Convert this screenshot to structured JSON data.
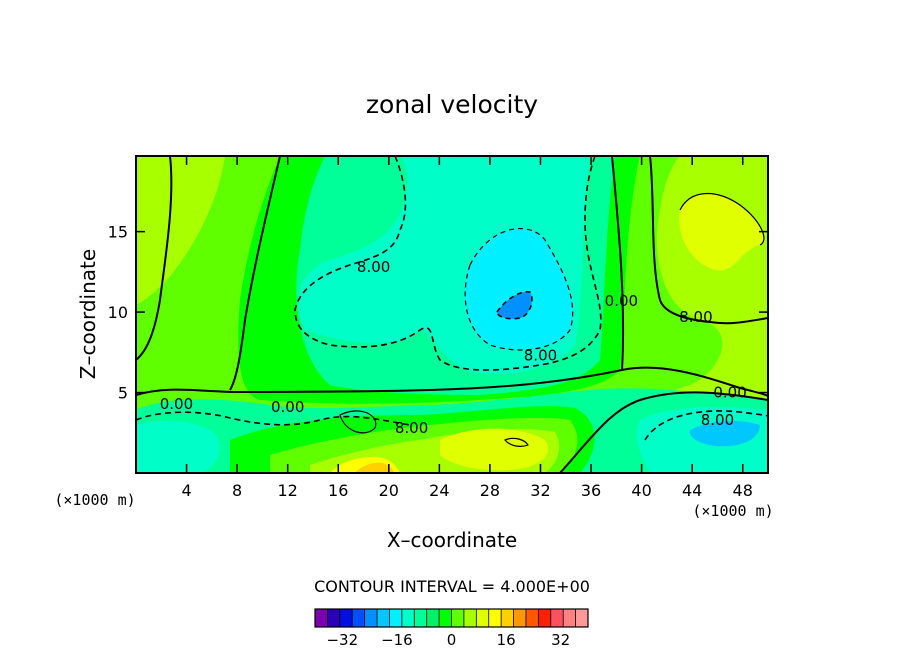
{
  "chart_data": {
    "type": "heatmap",
    "title": "zonal velocity",
    "xlabel": "X–coordinate",
    "ylabel": "Z–coordinate",
    "x_unit_left": "(×1000 m)",
    "x_unit_right": "(×1000 m)",
    "xlim": [
      0,
      50
    ],
    "ylim": [
      0,
      19.7
    ],
    "x_ticks": [
      4,
      8,
      12,
      16,
      20,
      24,
      28,
      32,
      36,
      40,
      44,
      48
    ],
    "y_ticks": [
      5,
      10,
      15
    ],
    "contour_interval_text": "CONTOUR INTERVAL = 4.000E+00",
    "contour_labels": [
      {
        "text": "8.00",
        "x": 18.8,
        "z": 12.8
      },
      {
        "text": "0.00",
        "x": 38.4,
        "z": 10.7
      },
      {
        "text": "8.00",
        "x": 44.3,
        "z": 9.7
      },
      {
        "text": "8.00",
        "x": 32.0,
        "z": 7.3
      },
      {
        "text": "0.00",
        "x": 47.0,
        "z": 5.0
      },
      {
        "text": "0.00",
        "x": 3.2,
        "z": 4.3
      },
      {
        "text": "0.00",
        "x": 12.0,
        "z": 4.1
      },
      {
        "text": "8.00",
        "x": 21.8,
        "z": 2.8
      },
      {
        "text": "8.00",
        "x": 46.0,
        "z": 3.3
      }
    ],
    "colorbar": {
      "ticks": [
        -32,
        -16,
        0,
        16,
        32
      ],
      "tick_labels": [
        "−32",
        "−16",
        "0",
        "16",
        "32"
      ],
      "min": -40,
      "max": 40,
      "colors": [
        "#7b00b0",
        "#2a00b8",
        "#0010e0",
        "#0050ff",
        "#0090ff",
        "#00c8ff",
        "#00f0ff",
        "#00ffc8",
        "#00ff98",
        "#00f068",
        "#00ff00",
        "#60ff00",
        "#a8ff00",
        "#e0ff00",
        "#ffff00",
        "#ffd000",
        "#ff9800",
        "#ff5800",
        "#ff2000",
        "#ff5060",
        "#ff8080",
        "#ff9898"
      ]
    }
  }
}
